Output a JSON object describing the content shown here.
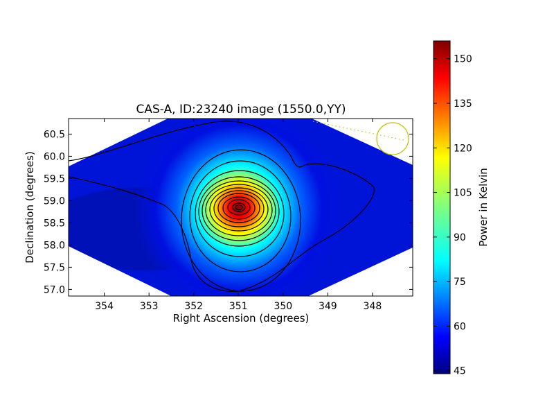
{
  "chart_data": {
    "type": "heatmap",
    "title": "CAS-A, ID:23240 image (1550.0,YY)",
    "xlabel": "Right Ascension (degrees)",
    "ylabel": "Declination (degrees)",
    "xlim": [
      354.8,
      347.1
    ],
    "ylim": [
      56.85,
      60.85
    ],
    "x_ticks": [
      354,
      353,
      352,
      351,
      350,
      349,
      348
    ],
    "x_tick_labels": [
      "354",
      "353",
      "352",
      "351",
      "350",
      "349",
      "348"
    ],
    "y_ticks": [
      57.0,
      57.5,
      58.0,
      58.5,
      59.0,
      59.5,
      60.0,
      60.5
    ],
    "y_tick_labels": [
      "57.0",
      "57.5",
      "58.0",
      "58.5",
      "59.0",
      "59.5",
      "60.0",
      "60.5"
    ],
    "colorbar": {
      "label": "Power in Kelvin",
      "colormap": "jet",
      "min": 44,
      "max": 156,
      "ticks": [
        45,
        60,
        75,
        90,
        105,
        120,
        135,
        150
      ],
      "tick_labels": [
        "45",
        "60",
        "75",
        "90",
        "105",
        "120",
        "135",
        "150"
      ]
    },
    "peak": {
      "ra": 350.9,
      "dec": 58.82,
      "value": 155
    },
    "background_level": 48,
    "contour_levels": [
      50,
      55,
      60,
      65,
      75,
      85,
      95,
      105,
      115,
      125,
      135,
      145,
      152
    ],
    "beam_marker": {
      "ra": 347.45,
      "dec": 60.38,
      "color": "#bfbf00"
    },
    "grid": false
  }
}
